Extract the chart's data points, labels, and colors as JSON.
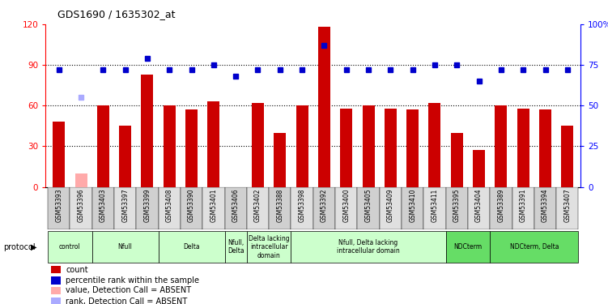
{
  "title": "GDS1690 / 1635302_at",
  "samples": [
    "GSM53393",
    "GSM53396",
    "GSM53403",
    "GSM53397",
    "GSM53399",
    "GSM53408",
    "GSM53390",
    "GSM53401",
    "GSM53406",
    "GSM53402",
    "GSM53388",
    "GSM53398",
    "GSM53392",
    "GSM53400",
    "GSM53405",
    "GSM53409",
    "GSM53410",
    "GSM53411",
    "GSM53395",
    "GSM53404",
    "GSM53389",
    "GSM53391",
    "GSM53394",
    "GSM53407"
  ],
  "counts": [
    48,
    10,
    60,
    45,
    83,
    60,
    57,
    63,
    0,
    62,
    40,
    60,
    118,
    58,
    60,
    58,
    57,
    62,
    40,
    27,
    60,
    58,
    57,
    45
  ],
  "ranks": [
    72,
    55,
    72,
    72,
    79,
    72,
    72,
    75,
    68,
    72,
    72,
    72,
    87,
    72,
    72,
    72,
    72,
    75,
    75,
    65,
    72,
    72,
    72,
    72
  ],
  "absent_count_idx": [
    1
  ],
  "absent_rank_idx": [
    1
  ],
  "protocol_groups": [
    {
      "label": "control",
      "start": 0,
      "end": 2,
      "color": "#ccffcc"
    },
    {
      "label": "Nfull",
      "start": 2,
      "end": 5,
      "color": "#ccffcc"
    },
    {
      "label": "Delta",
      "start": 5,
      "end": 8,
      "color": "#ccffcc"
    },
    {
      "label": "Nfull,\nDelta",
      "start": 8,
      "end": 9,
      "color": "#ccffcc"
    },
    {
      "label": "Delta lacking\nintracellular\ndomain",
      "start": 9,
      "end": 11,
      "color": "#ccffcc"
    },
    {
      "label": "Nfull, Delta lacking\nintracellular domain",
      "start": 11,
      "end": 18,
      "color": "#ccffcc"
    },
    {
      "label": "NDCterm",
      "start": 18,
      "end": 20,
      "color": "#66dd66"
    },
    {
      "label": "NDCterm, Delta",
      "start": 20,
      "end": 24,
      "color": "#66dd66"
    }
  ],
  "ylim_left": [
    0,
    120
  ],
  "ylim_right": [
    0,
    100
  ],
  "yticks_left": [
    0,
    30,
    60,
    90,
    120
  ],
  "yticks_right": [
    0,
    25,
    50,
    75,
    100
  ],
  "bar_color": "#cc0000",
  "rank_color": "#0000cc",
  "absent_bar_color": "#ffaaaa",
  "absent_rank_color": "#aaaaff",
  "dotted_lines": [
    30,
    60,
    90
  ],
  "legend_items": [
    {
      "color": "#cc0000",
      "label": "count"
    },
    {
      "color": "#0000cc",
      "label": "percentile rank within the sample"
    },
    {
      "color": "#ffaaaa",
      "label": "value, Detection Call = ABSENT"
    },
    {
      "color": "#aaaaff",
      "label": "rank, Detection Call = ABSENT"
    }
  ]
}
